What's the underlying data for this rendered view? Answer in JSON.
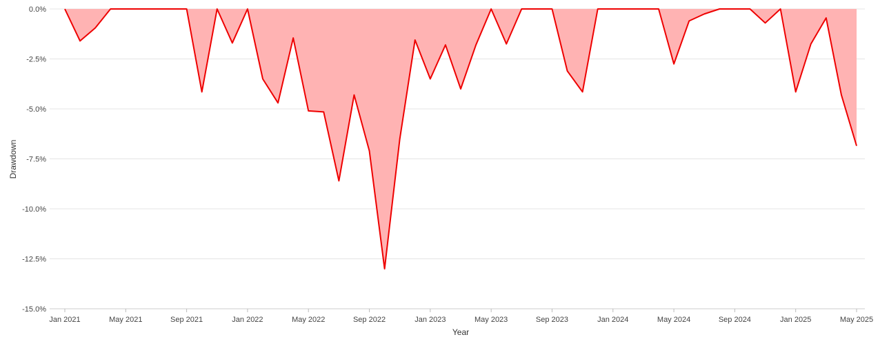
{
  "chart_data": {
    "type": "area",
    "xlabel": "Year",
    "ylabel": "Drawdown",
    "ylim": [
      -15,
      0
    ],
    "y_ticks": [
      {
        "value": 0,
        "label": "0.0%"
      },
      {
        "value": -2.5,
        "label": "-2.5%"
      },
      {
        "value": -5,
        "label": "-5.0%"
      },
      {
        "value": -7.5,
        "label": "-7.5%"
      },
      {
        "value": -10,
        "label": "-10.0%"
      },
      {
        "value": -12.5,
        "label": "-12.5%"
      },
      {
        "value": -15,
        "label": "-15.0%"
      }
    ],
    "x_ticks": [
      {
        "index": 0,
        "label": "Jan 2021"
      },
      {
        "index": 4,
        "label": "May 2021"
      },
      {
        "index": 8,
        "label": "Sep 2021"
      },
      {
        "index": 12,
        "label": "Jan 2022"
      },
      {
        "index": 16,
        "label": "May 2022"
      },
      {
        "index": 20,
        "label": "Sep 2022"
      },
      {
        "index": 24,
        "label": "Jan 2023"
      },
      {
        "index": 28,
        "label": "May 2023"
      },
      {
        "index": 32,
        "label": "Sep 2023"
      },
      {
        "index": 36,
        "label": "Jan 2024"
      },
      {
        "index": 40,
        "label": "May 2024"
      },
      {
        "index": 44,
        "label": "Sep 2024"
      },
      {
        "index": 48,
        "label": "Jan 2025"
      },
      {
        "index": 52,
        "label": "May 2025"
      }
    ],
    "x": [
      "Jan 2021",
      "Feb 2021",
      "Mar 2021",
      "Apr 2021",
      "May 2021",
      "Jun 2021",
      "Jul 2021",
      "Aug 2021",
      "Sep 2021",
      "Oct 2021",
      "Nov 2021",
      "Dec 2021",
      "Jan 2022",
      "Feb 2022",
      "Mar 2022",
      "Apr 2022",
      "May 2022",
      "Jun 2022",
      "Jul 2022",
      "Aug 2022",
      "Sep 2022",
      "Oct 2022",
      "Nov 2022",
      "Dec 2022",
      "Jan 2023",
      "Feb 2023",
      "Mar 2023",
      "Apr 2023",
      "May 2023",
      "Jun 2023",
      "Jul 2023",
      "Aug 2023",
      "Sep 2023",
      "Oct 2023",
      "Nov 2023",
      "Dec 2023",
      "Jan 2024",
      "Feb 2024",
      "Mar 2024",
      "Apr 2024",
      "May 2024",
      "Jun 2024",
      "Jul 2024",
      "Aug 2024",
      "Sep 2024",
      "Oct 2024",
      "Nov 2024",
      "Dec 2024",
      "Jan 2025",
      "Feb 2025",
      "Mar 2025",
      "Apr 2025",
      "May 2025"
    ],
    "series": [
      {
        "values": [
          0,
          -1.6,
          -0.95,
          0,
          0,
          0,
          0,
          0,
          0,
          -4.15,
          0,
          -1.7,
          0,
          -3.5,
          -4.7,
          -1.45,
          -5.1,
          -5.15,
          -8.6,
          -4.3,
          -7.1,
          -13.0,
          -6.5,
          -1.55,
          -3.5,
          -1.8,
          -4.0,
          -1.8,
          0,
          -1.75,
          0,
          0,
          0,
          -3.1,
          -4.15,
          0,
          0,
          0,
          0,
          0,
          -2.75,
          -0.6,
          -0.25,
          0,
          0,
          0,
          -0.7,
          0,
          -4.15,
          -1.75,
          -0.45,
          -4.3,
          -6.85
        ]
      }
    ],
    "colors": {
      "line": "#ee0000",
      "fill": "#ffb3b3",
      "grid": "#e4e4e4"
    },
    "grid": true,
    "legend": "none"
  }
}
